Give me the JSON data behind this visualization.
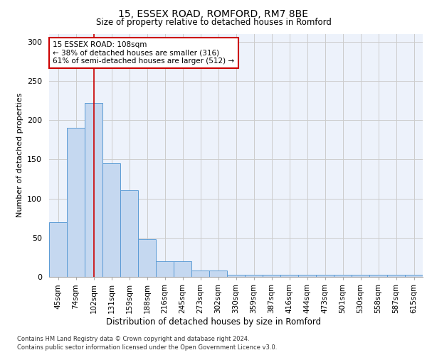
{
  "title": "15, ESSEX ROAD, ROMFORD, RM7 8BE",
  "subtitle": "Size of property relative to detached houses in Romford",
  "xlabel": "Distribution of detached houses by size in Romford",
  "ylabel": "Number of detached properties",
  "categories": [
    "45sqm",
    "74sqm",
    "102sqm",
    "131sqm",
    "159sqm",
    "188sqm",
    "216sqm",
    "245sqm",
    "273sqm",
    "302sqm",
    "330sqm",
    "359sqm",
    "387sqm",
    "416sqm",
    "444sqm",
    "473sqm",
    "501sqm",
    "530sqm",
    "558sqm",
    "587sqm",
    "615sqm"
  ],
  "values": [
    70,
    190,
    222,
    145,
    110,
    48,
    20,
    20,
    8,
    8,
    3,
    3,
    3,
    3,
    3,
    3,
    3,
    3,
    3,
    3,
    3
  ],
  "bar_color": "#c5d8f0",
  "bar_edge_color": "#5b9bd5",
  "property_line_x": 2.0,
  "annotation_text": "15 ESSEX ROAD: 108sqm\n← 38% of detached houses are smaller (316)\n61% of semi-detached houses are larger (512) →",
  "annotation_box_color": "white",
  "annotation_box_edge_color": "#cc0000",
  "line_color": "#cc0000",
  "grid_color": "#cccccc",
  "background_color": "#edf2fb",
  "ylim": [
    0,
    310
  ],
  "yticks": [
    0,
    50,
    100,
    150,
    200,
    250,
    300
  ],
  "footer_line1": "Contains HM Land Registry data © Crown copyright and database right 2024.",
  "footer_line2": "Contains public sector information licensed under the Open Government Licence v3.0."
}
